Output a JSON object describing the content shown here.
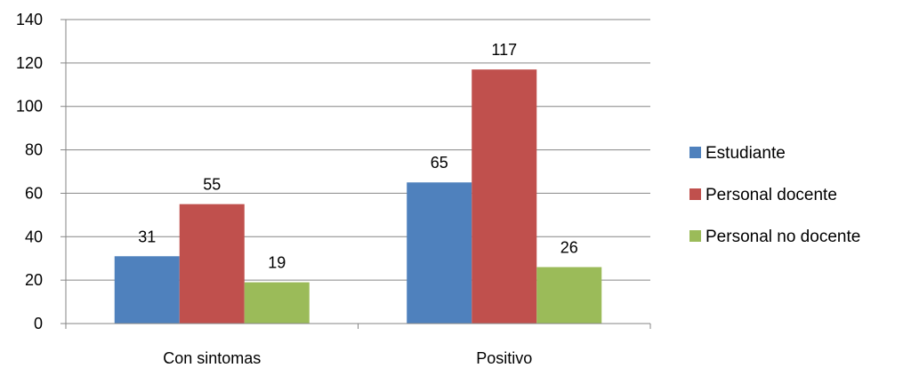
{
  "chart_data": {
    "type": "bar",
    "categories": [
      "Con sintomas",
      "Positivo"
    ],
    "series": [
      {
        "name": "Estudiante",
        "values": [
          31,
          65
        ],
        "color": "#4f81bd"
      },
      {
        "name": "Personal docente",
        "values": [
          55,
          117
        ],
        "color": "#c0504d"
      },
      {
        "name": "Personal no docente",
        "values": [
          19,
          26
        ],
        "color": "#9bbb59"
      }
    ],
    "ylim": [
      0,
      140
    ],
    "yticks": [
      0,
      20,
      40,
      60,
      80,
      100,
      120,
      140
    ],
    "grid": true,
    "legend": "right",
    "data_labels": true
  }
}
